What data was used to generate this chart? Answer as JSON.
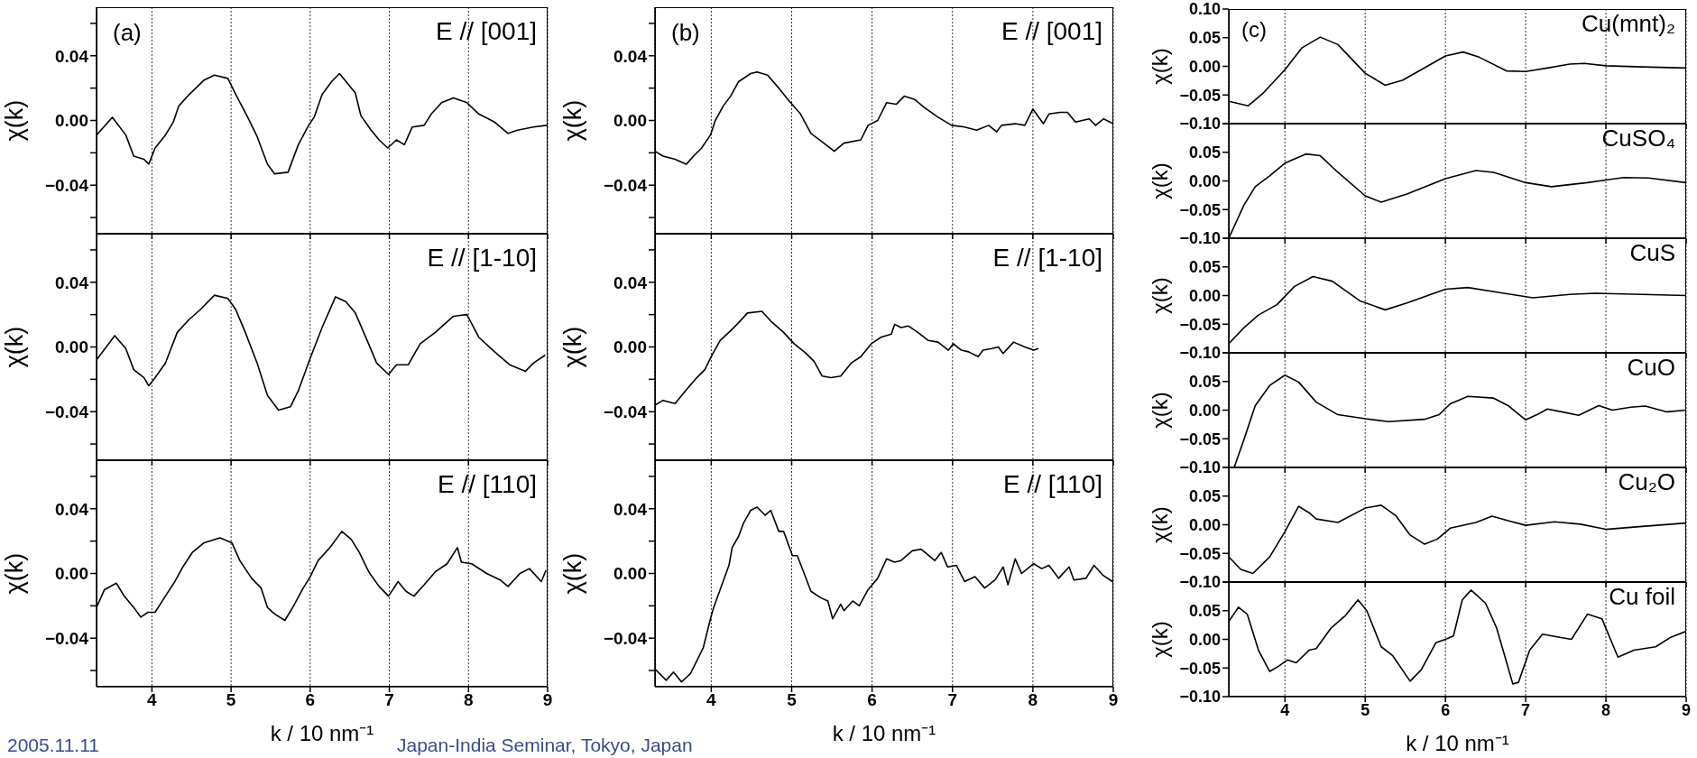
{
  "chart_data": [
    {
      "type": "line",
      "title": "E // [001]",
      "ylabel": "χ(k)",
      "annotations": [
        "(a)",
        "2005.11.11",
        "Japan-India Seminar, Tokyo, Japan"
      ],
      "color": "#000000",
      "grid": "x",
      "tick_labels": "y",
      "xlim": [
        3.3,
        9
      ],
      "xticks": [
        4,
        5,
        6,
        7,
        8,
        9
      ],
      "ylim": [
        -0.07,
        0.07
      ],
      "yticks": [
        {
          "value": -0.06,
          "label": null
        },
        {
          "value": -0.04,
          "label": "−0.04"
        },
        {
          "value": -0.02,
          "label": null
        },
        {
          "value": 0,
          "label": "0.00"
        },
        {
          "value": 0.02,
          "label": null
        },
        {
          "value": 0.04,
          "label": "0.04"
        },
        {
          "value": 0.06,
          "label": null
        }
      ],
      "x": [
        3.3,
        3.5,
        3.67,
        3.77,
        3.9,
        3.96,
        4.04,
        4.17,
        4.27,
        4.34,
        4.47,
        4.66,
        4.79,
        4.96,
        5.06,
        5.21,
        5.33,
        5.46,
        5.55,
        5.72,
        5.85,
        5.98,
        6.05,
        6.15,
        6.27,
        6.37,
        6.47,
        6.57,
        6.64,
        6.77,
        6.87,
        6.98,
        7.09,
        7.19,
        7.29,
        7.44,
        7.53,
        7.66,
        7.81,
        7.98,
        8.13,
        8.33,
        8.5,
        8.62,
        8.82,
        8.99
      ],
      "values": [
        -0.009,
        0.002,
        -0.009,
        -0.022,
        -0.024,
        -0.027,
        -0.017,
        -0.009,
        -0.001,
        0.009,
        0.016,
        0.025,
        0.028,
        0.026,
        0.016,
        0.002,
        -0.01,
        -0.027,
        -0.033,
        -0.032,
        -0.015,
        -0.003,
        0.002,
        0.016,
        0.024,
        0.029,
        0.023,
        0.017,
        0.003,
        -0.006,
        -0.012,
        -0.017,
        -0.012,
        -0.015,
        -0.004,
        -0.003,
        0.004,
        0.011,
        0.014,
        0.011,
        0.004,
        -0.001,
        -0.008,
        -0.006,
        -0.004,
        -0.003
      ]
    },
    {
      "type": "line",
      "title": "E // [1-10]",
      "ylabel": "χ(k)",
      "color": "#000000",
      "grid": "x",
      "tick_labels": "y",
      "xlim": [
        3.3,
        9
      ],
      "xticks": [
        4,
        5,
        6,
        7,
        8,
        9
      ],
      "ylim": [
        -0.07,
        0.07
      ],
      "yticks": [
        {
          "value": -0.06,
          "label": null
        },
        {
          "value": -0.04,
          "label": "−0.04"
        },
        {
          "value": -0.02,
          "label": null
        },
        {
          "value": 0,
          "label": "0.00"
        },
        {
          "value": 0.02,
          "label": null
        },
        {
          "value": 0.04,
          "label": "0.04"
        },
        {
          "value": 0.06,
          "label": null
        }
      ],
      "x": [
        3.3,
        3.53,
        3.67,
        3.77,
        3.9,
        3.96,
        4.04,
        4.17,
        4.32,
        4.47,
        4.61,
        4.79,
        4.96,
        5.06,
        5.18,
        5.33,
        5.46,
        5.6,
        5.75,
        5.85,
        6.0,
        6.15,
        6.32,
        6.45,
        6.57,
        6.72,
        6.84,
        6.99,
        7.09,
        7.24,
        7.39,
        7.58,
        7.81,
        7.98,
        8.13,
        8.33,
        8.52,
        8.72,
        8.82,
        8.97
      ],
      "values": [
        -0.008,
        0.007,
        -0.001,
        -0.014,
        -0.019,
        -0.024,
        -0.019,
        -0.01,
        0.009,
        0.017,
        0.023,
        0.032,
        0.03,
        0.023,
        0.009,
        -0.01,
        -0.03,
        -0.039,
        -0.037,
        -0.027,
        -0.007,
        0.012,
        0.031,
        0.028,
        0.021,
        0.004,
        -0.01,
        -0.017,
        -0.011,
        -0.011,
        0.002,
        0.009,
        0.019,
        0.02,
        0.006,
        -0.003,
        -0.011,
        -0.015,
        -0.01,
        -0.005
      ]
    },
    {
      "type": "line",
      "title": "E // [110]",
      "ylabel": "χ(k)",
      "xlabel": "k / 10 nm⁻¹",
      "color": "#000000",
      "grid": "x",
      "xlim": [
        3.3,
        9
      ],
      "xticks": [
        4,
        5,
        6,
        7,
        8,
        9
      ],
      "ylim": [
        -0.07,
        0.07
      ],
      "yticks": [
        {
          "value": -0.06,
          "label": null
        },
        {
          "value": -0.04,
          "label": "−0.04"
        },
        {
          "value": -0.02,
          "label": null
        },
        {
          "value": 0,
          "label": "0.00"
        },
        {
          "value": 0.02,
          "label": null
        },
        {
          "value": 0.04,
          "label": "0.04"
        },
        {
          "value": 0.06,
          "label": null
        }
      ],
      "x": [
        3.3,
        3.4,
        3.55,
        3.65,
        3.77,
        3.86,
        3.95,
        4.04,
        4.17,
        4.29,
        4.39,
        4.51,
        4.66,
        4.86,
        5.01,
        5.11,
        5.26,
        5.38,
        5.46,
        5.55,
        5.68,
        5.78,
        5.9,
        6.0,
        6.1,
        6.25,
        6.4,
        6.52,
        6.62,
        6.74,
        6.87,
        6.99,
        7.11,
        7.21,
        7.31,
        7.44,
        7.58,
        7.73,
        7.86,
        7.91,
        8.04,
        8.23,
        8.4,
        8.5,
        8.65,
        8.77,
        8.92,
        8.98
      ],
      "values": [
        -0.021,
        -0.01,
        -0.006,
        -0.014,
        -0.021,
        -0.027,
        -0.024,
        -0.024,
        -0.014,
        -0.005,
        0.004,
        0.013,
        0.019,
        0.022,
        0.019,
        0.008,
        -0.003,
        -0.009,
        -0.021,
        -0.025,
        -0.029,
        -0.021,
        -0.01,
        -0.002,
        0.008,
        0.016,
        0.026,
        0.021,
        0.013,
        0.001,
        -0.008,
        -0.014,
        -0.005,
        -0.011,
        -0.014,
        -0.007,
        0.001,
        0.006,
        0.016,
        0.007,
        0.006,
        0,
        -0.004,
        -0.008,
        0,
        0.003,
        -0.005,
        0.002
      ]
    },
    {
      "type": "line",
      "title": "E // [001]",
      "ylabel": "χ(k)",
      "annotations": [
        "(b)"
      ],
      "color": "#000000",
      "grid": "x",
      "tick_labels": "y",
      "xlim": [
        3.3,
        9
      ],
      "xticks": [
        4,
        5,
        6,
        7,
        8,
        9
      ],
      "ylim": [
        -0.07,
        0.07
      ],
      "yticks": [
        {
          "value": -0.06,
          "label": null
        },
        {
          "value": -0.04,
          "label": "−0.04"
        },
        {
          "value": -0.02,
          "label": null
        },
        {
          "value": 0,
          "label": "0.00"
        },
        {
          "value": 0.02,
          "label": null
        },
        {
          "value": 0.04,
          "label": "0.04"
        },
        {
          "value": 0.06,
          "label": null
        }
      ],
      "x": [
        3.3,
        3.4,
        3.55,
        3.69,
        3.78,
        3.88,
        3.99,
        4.05,
        4.15,
        4.24,
        4.34,
        4.49,
        4.57,
        4.7,
        4.84,
        4.97,
        5.11,
        5.24,
        5.4,
        5.53,
        5.65,
        5.86,
        5.95,
        6.07,
        6.18,
        6.3,
        6.4,
        6.53,
        6.65,
        6.82,
        6.99,
        7.15,
        7.3,
        7.45,
        7.55,
        7.61,
        7.78,
        7.9,
        8.0,
        8.13,
        8.2,
        8.34,
        8.43,
        8.53,
        8.7,
        8.78,
        8.88,
        9.0
      ],
      "values": [
        -0.019,
        -0.022,
        -0.024,
        -0.027,
        -0.022,
        -0.017,
        -0.009,
        0,
        0.009,
        0.015,
        0.024,
        0.029,
        0.03,
        0.028,
        0.02,
        0.012,
        0.004,
        -0.008,
        -0.014,
        -0.019,
        -0.014,
        -0.012,
        -0.003,
        0,
        0.011,
        0.01,
        0.015,
        0.013,
        0.008,
        0.002,
        -0.003,
        -0.004,
        -0.006,
        -0.003,
        -0.007,
        -0.003,
        -0.002,
        -0.003,
        0.007,
        -0.002,
        0.004,
        0.005,
        0.005,
        -0.001,
        0.001,
        -0.003,
        0.001,
        -0.002
      ]
    },
    {
      "type": "line",
      "title": "E // [1-10]",
      "ylabel": "χ(k)",
      "color": "#000000",
      "grid": "x",
      "tick_labels": "y",
      "xlim": [
        3.3,
        9
      ],
      "xticks": [
        4,
        5,
        6,
        7,
        8,
        9
      ],
      "ylim": [
        -0.07,
        0.07
      ],
      "yticks": [
        {
          "value": -0.06,
          "label": null
        },
        {
          "value": -0.04,
          "label": "−0.04"
        },
        {
          "value": -0.02,
          "label": null
        },
        {
          "value": 0,
          "label": "0.00"
        },
        {
          "value": 0.02,
          "label": null
        },
        {
          "value": 0.04,
          "label": "0.04"
        },
        {
          "value": 0.06,
          "label": null
        }
      ],
      "x": [
        3.3,
        3.4,
        3.55,
        3.68,
        3.82,
        3.92,
        4.01,
        4.11,
        4.24,
        4.34,
        4.45,
        4.63,
        4.74,
        4.9,
        5.03,
        5.18,
        5.28,
        5.38,
        5.49,
        5.61,
        5.74,
        5.86,
        5.99,
        6.11,
        6.24,
        6.28,
        6.36,
        6.45,
        6.57,
        6.7,
        6.82,
        6.95,
        7.01,
        7.11,
        7.2,
        7.32,
        7.38,
        7.49,
        7.57,
        7.63,
        7.76,
        7.9,
        8.01,
        8.07
      ],
      "values": [
        -0.036,
        -0.033,
        -0.035,
        -0.027,
        -0.019,
        -0.014,
        -0.005,
        0.004,
        0.01,
        0.015,
        0.021,
        0.022,
        0.016,
        0.009,
        0.002,
        -0.004,
        -0.009,
        -0.018,
        -0.019,
        -0.018,
        -0.01,
        -0.006,
        0.002,
        0.006,
        0.008,
        0.014,
        0.012,
        0.013,
        0.009,
        0.004,
        0.003,
        -0.002,
        0.002,
        -0.002,
        -0.003,
        -0.006,
        -0.002,
        -0.001,
        0,
        -0.004,
        0.003,
        0,
        -0.002,
        -0.001
      ]
    },
    {
      "type": "line",
      "title": "E // [110]",
      "ylabel": "χ(k)",
      "xlabel": "k / 10 nm⁻¹",
      "color": "#000000",
      "grid": "x",
      "xlim": [
        3.3,
        9
      ],
      "xticks": [
        4,
        5,
        6,
        7,
        8,
        9
      ],
      "ylim": [
        -0.07,
        0.07
      ],
      "yticks": [
        {
          "value": -0.06,
          "label": null
        },
        {
          "value": -0.04,
          "label": "−0.04"
        },
        {
          "value": -0.02,
          "label": null
        },
        {
          "value": 0,
          "label": "0.00"
        },
        {
          "value": 0.02,
          "label": null
        },
        {
          "value": 0.04,
          "label": "0.04"
        },
        {
          "value": 0.06,
          "label": null
        }
      ],
      "x": [
        3.3,
        3.44,
        3.53,
        3.63,
        3.74,
        3.82,
        3.9,
        3.99,
        4.03,
        4.11,
        4.22,
        4.26,
        4.34,
        4.4,
        4.49,
        4.57,
        4.67,
        4.74,
        4.84,
        4.9,
        5.01,
        5.07,
        5.24,
        5.36,
        5.45,
        5.51,
        5.61,
        5.65,
        5.76,
        5.84,
        5.95,
        6.07,
        6.18,
        6.28,
        6.36,
        6.5,
        6.61,
        6.78,
        6.86,
        6.94,
        7.05,
        7.15,
        7.28,
        7.4,
        7.53,
        7.63,
        7.69,
        7.78,
        7.86,
        8.01,
        8.11,
        8.2,
        8.32,
        8.45,
        8.51,
        8.66,
        8.76,
        8.87,
        8.99
      ],
      "values": [
        -0.059,
        -0.066,
        -0.061,
        -0.067,
        -0.062,
        -0.054,
        -0.046,
        -0.028,
        -0.021,
        -0.01,
        0.005,
        0.016,
        0.023,
        0.031,
        0.039,
        0.041,
        0.036,
        0.039,
        0.026,
        0.026,
        0.011,
        0.011,
        -0.011,
        -0.015,
        -0.017,
        -0.028,
        -0.019,
        -0.023,
        -0.017,
        -0.02,
        -0.01,
        -0.003,
        0.009,
        0.007,
        0.008,
        0.014,
        0.015,
        0.008,
        0.013,
        0.004,
        0.005,
        -0.005,
        -0.002,
        -0.009,
        -0.004,
        0.004,
        -0.007,
        0.009,
        0,
        0.006,
        0.003,
        0.005,
        -0.003,
        0.004,
        -0.004,
        -0.003,
        0.005,
        -0.001,
        -0.005
      ]
    },
    {
      "type": "line",
      "title": "Cu(mnt)₂",
      "ylabel": "χ(k)",
      "annotations": [
        "(c)"
      ],
      "color": "#000000",
      "grid": "x",
      "tick_labels": "y",
      "xlim": [
        3.3,
        9
      ],
      "xticks": [
        4,
        5,
        6,
        7,
        8,
        9
      ],
      "ylim": [
        -0.1,
        0.1
      ],
      "yticks": [
        {
          "value": -0.1,
          "label": "−0.10"
        },
        {
          "value": -0.05,
          "label": "−0.05"
        },
        {
          "value": 0,
          "label": "0.00"
        },
        {
          "value": 0.05,
          "label": "0.05"
        },
        {
          "value": 0.1,
          "label": "0.10"
        }
      ],
      "x": [
        3.3,
        3.54,
        3.72,
        4.0,
        4.21,
        4.44,
        4.66,
        5.0,
        5.25,
        5.47,
        6.0,
        6.22,
        6.42,
        6.76,
        7.0,
        7.27,
        7.55,
        7.73,
        8.0,
        8.45,
        9.0
      ],
      "values": [
        -0.061,
        -0.069,
        -0.048,
        -0.006,
        0.032,
        0.051,
        0.038,
        -0.012,
        -0.033,
        -0.024,
        0.018,
        0.025,
        0.016,
        -0.008,
        -0.009,
        -0.003,
        0.004,
        0.005,
        0.001,
        -0.001,
        -0.003
      ]
    },
    {
      "type": "line",
      "title": "CuSO₄",
      "ylabel": "χ(k)",
      "color": "#000000",
      "grid": "x",
      "tick_labels": "y",
      "xlim": [
        3.3,
        9
      ],
      "xticks": [
        4,
        5,
        6,
        7,
        8,
        9
      ],
      "ylim": [
        -0.1,
        0.1
      ],
      "yticks": [
        {
          "value": -0.1,
          "label": "−0.10"
        },
        {
          "value": -0.05,
          "label": "−0.05"
        },
        {
          "value": 0,
          "label": "0.00"
        },
        {
          "value": 0.05,
          "label": "0.05"
        },
        {
          "value": 0.1,
          "label": null
        }
      ],
      "x": [
        3.3,
        3.49,
        3.63,
        3.81,
        4.0,
        4.26,
        4.44,
        4.66,
        5.0,
        5.2,
        5.52,
        6.0,
        6.38,
        6.6,
        7.0,
        7.32,
        7.77,
        8.22,
        8.53,
        9.0
      ],
      "values": [
        -0.1,
        -0.042,
        -0.01,
        0.009,
        0.031,
        0.047,
        0.044,
        0.015,
        -0.026,
        -0.037,
        -0.023,
        0.004,
        0.018,
        0.015,
        -0.003,
        -0.01,
        -0.003,
        0.006,
        0.005,
        -0.003
      ]
    },
    {
      "type": "line",
      "title": "CuS",
      "ylabel": "χ(k)",
      "color": "#000000",
      "grid": "x",
      "tick_labels": "y",
      "xlim": [
        3.3,
        9
      ],
      "xticks": [
        4,
        5,
        6,
        7,
        8,
        9
      ],
      "ylim": [
        -0.1,
        0.1
      ],
      "yticks": [
        {
          "value": -0.1,
          "label": "−0.10"
        },
        {
          "value": -0.05,
          "label": "−0.05"
        },
        {
          "value": 0,
          "label": "0.00"
        },
        {
          "value": 0.05,
          "label": "0.05"
        },
        {
          "value": 0.1,
          "label": null
        }
      ],
      "x": [
        3.3,
        3.49,
        3.67,
        3.9,
        4.12,
        4.35,
        4.59,
        4.93,
        5.25,
        5.52,
        6.0,
        6.28,
        6.64,
        7.09,
        7.55,
        7.86,
        8.45,
        9.0
      ],
      "values": [
        -0.084,
        -0.056,
        -0.034,
        -0.016,
        0.016,
        0.033,
        0.025,
        -0.009,
        -0.025,
        -0.013,
        0.011,
        0.014,
        0.006,
        -0.004,
        0.002,
        0.004,
        0.002,
        0
      ]
    },
    {
      "type": "line",
      "title": "CuO",
      "ylabel": "χ(k)",
      "color": "#000000",
      "grid": "x",
      "tick_labels": "y",
      "xlim": [
        3.3,
        9
      ],
      "xticks": [
        4,
        5,
        6,
        7,
        8,
        9
      ],
      "ylim": [
        -0.1,
        0.1
      ],
      "yticks": [
        {
          "value": -0.1,
          "label": "−0.10"
        },
        {
          "value": -0.05,
          "label": "−0.05"
        },
        {
          "value": 0,
          "label": "0.00"
        },
        {
          "value": 0.05,
          "label": "0.05"
        },
        {
          "value": 0.1,
          "label": null
        }
      ],
      "x": [
        3.37,
        3.49,
        3.63,
        3.81,
        4.0,
        4.17,
        4.39,
        4.66,
        5.0,
        5.29,
        5.74,
        5.92,
        6.06,
        6.28,
        6.6,
        6.78,
        7.0,
        7.14,
        7.27,
        7.45,
        7.66,
        7.91,
        8.08,
        8.31,
        8.49,
        8.76,
        9.0
      ],
      "values": [
        -0.099,
        -0.051,
        0.008,
        0.043,
        0.061,
        0.049,
        0.014,
        -0.008,
        -0.015,
        -0.02,
        -0.016,
        -0.008,
        0.011,
        0.024,
        0.021,
        0.008,
        -0.017,
        -0.008,
        0.002,
        -0.003,
        -0.009,
        0.008,
        0,
        0.005,
        0.007,
        -0.003,
        0
      ]
    },
    {
      "type": "line",
      "title": "Cu₂O",
      "ylabel": "χ(k)",
      "color": "#000000",
      "grid": "x",
      "tick_labels": "y",
      "xlim": [
        3.3,
        9
      ],
      "xticks": [
        4,
        5,
        6,
        7,
        8,
        9
      ],
      "ylim": [
        -0.1,
        0.1
      ],
      "yticks": [
        {
          "value": -0.1,
          "label": "−0.10"
        },
        {
          "value": -0.05,
          "label": "−0.05"
        },
        {
          "value": 0,
          "label": "0.00"
        },
        {
          "value": 0.05,
          "label": "0.05"
        },
        {
          "value": 0.1,
          "label": null
        }
      ],
      "x": [
        3.3,
        3.45,
        3.6,
        3.81,
        4.0,
        4.17,
        4.31,
        4.39,
        4.66,
        5.0,
        5.2,
        5.38,
        5.56,
        5.74,
        5.9,
        6.06,
        6.38,
        6.58,
        6.78,
        7.0,
        7.36,
        7.68,
        8.0,
        8.45,
        9.0
      ],
      "values": [
        -0.056,
        -0.078,
        -0.085,
        -0.056,
        -0.012,
        0.032,
        0.02,
        0.01,
        0.004,
        0.029,
        0.034,
        0.016,
        -0.018,
        -0.034,
        -0.025,
        -0.006,
        0.004,
        0.015,
        0.007,
        -0.001,
        0.005,
        0.001,
        -0.008,
        -0.003,
        0.003
      ]
    },
    {
      "type": "line",
      "title": "Cu foil",
      "ylabel": "χ(k)",
      "xlabel": "k / 10 nm⁻¹",
      "color": "#000000",
      "grid": "x",
      "xlim": [
        3.3,
        9
      ],
      "xticks": [
        4,
        5,
        6,
        7,
        8,
        9
      ],
      "ylim": [
        -0.1,
        0.1
      ],
      "yticks": [
        {
          "value": -0.1,
          "label": "−0.10"
        },
        {
          "value": -0.05,
          "label": "−0.05"
        },
        {
          "value": 0,
          "label": "0.00"
        },
        {
          "value": 0.05,
          "label": "0.05"
        },
        {
          "value": 0.1,
          "label": null
        }
      ],
      "x": [
        3.3,
        3.42,
        3.53,
        3.67,
        3.81,
        3.92,
        4.03,
        4.14,
        4.3,
        4.39,
        4.57,
        4.75,
        4.91,
        5.02,
        5.2,
        5.34,
        5.56,
        5.7,
        5.88,
        6.0,
        6.1,
        6.21,
        6.32,
        6.5,
        6.64,
        6.84,
        6.91,
        7.05,
        7.21,
        7.36,
        7.57,
        7.77,
        7.95,
        8.15,
        8.35,
        8.62,
        8.8,
        9.0
      ],
      "values": [
        0.031,
        0.056,
        0.044,
        -0.019,
        -0.056,
        -0.047,
        -0.036,
        -0.041,
        -0.019,
        -0.016,
        0.019,
        0.041,
        0.069,
        0.05,
        -0.013,
        -0.028,
        -0.073,
        -0.053,
        -0.006,
        0,
        0.006,
        0.069,
        0.086,
        0.063,
        0.019,
        -0.078,
        -0.075,
        -0.019,
        0.009,
        0.005,
        0,
        0.044,
        0.036,
        -0.031,
        -0.019,
        -0.013,
        0.003,
        0.014
      ]
    }
  ]
}
